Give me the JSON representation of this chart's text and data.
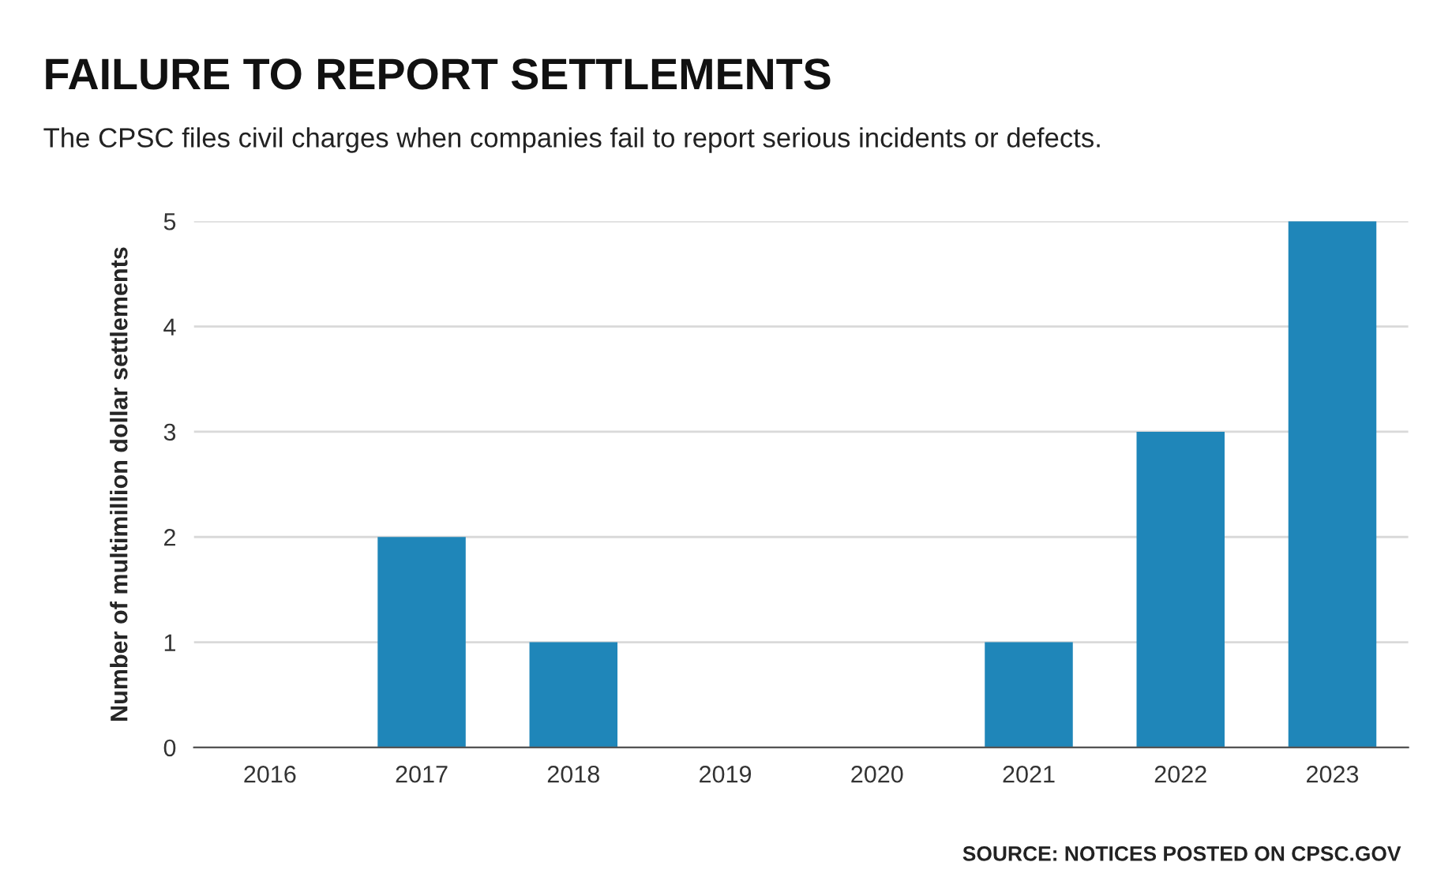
{
  "chart_data": {
    "type": "bar",
    "title": "FAILURE TO REPORT SETTLEMENTS",
    "subtitle": "The CPSC files civil charges when companies fail to report serious incidents or defects.",
    "ylabel": "Number of multimillion dollar settlements",
    "categories": [
      "2016",
      "2017",
      "2018",
      "2019",
      "2020",
      "2021",
      "2022",
      "2023"
    ],
    "values": [
      0,
      2,
      1,
      0,
      0,
      1,
      3,
      5
    ],
    "color": "#1f86b9",
    "ylim": [
      0,
      5
    ],
    "yticks": [
      0,
      1,
      2,
      3,
      4,
      5
    ],
    "grid": "y",
    "annotations": [
      "SOURCE: NOTICES POSTED ON CPSC.GOV"
    ]
  }
}
